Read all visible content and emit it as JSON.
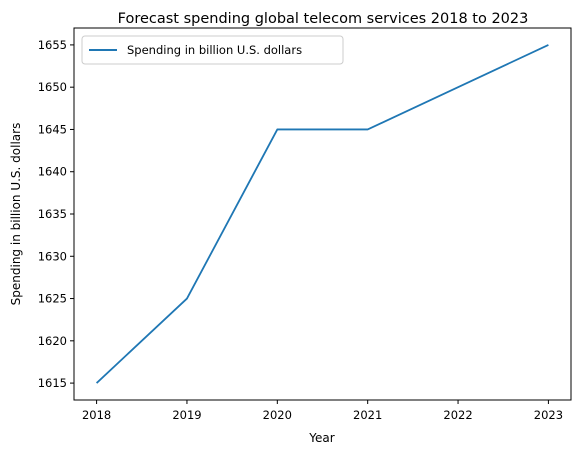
{
  "chart_data": {
    "type": "line",
    "title": "Forecast spending global telecom services 2018 to 2023",
    "xlabel": "Year",
    "ylabel": "Spending in billion U.S. dollars",
    "x": [
      2018,
      2019,
      2020,
      2021,
      2022,
      2023
    ],
    "series": [
      {
        "name": "Spending in billion U.S. dollars",
        "values": [
          1615,
          1625,
          1645,
          1645,
          1650,
          1655
        ],
        "color": "#1f77b4"
      }
    ],
    "xticks": [
      "2018",
      "2019",
      "2020",
      "2021",
      "2022",
      "2023"
    ],
    "yticks": [
      "1615",
      "1620",
      "1625",
      "1630",
      "1635",
      "1640",
      "1645",
      "1650",
      "1655"
    ],
    "xlim": [
      2017.75,
      2023.25
    ],
    "ylim": [
      1613,
      1657
    ],
    "grid": false,
    "legend_position": "upper-left"
  }
}
